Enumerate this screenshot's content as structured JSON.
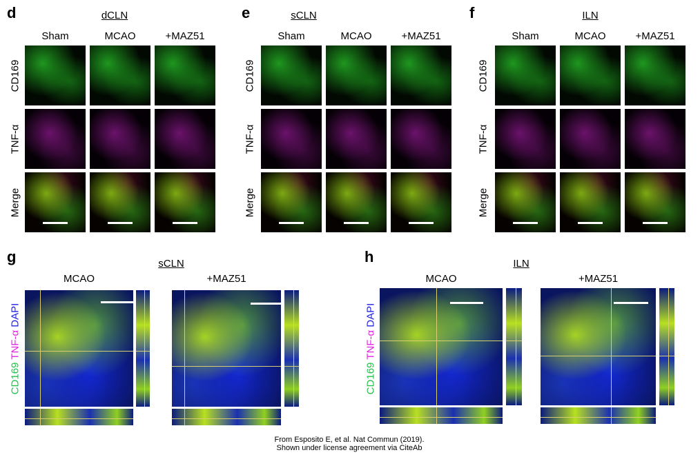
{
  "panels_top": [
    {
      "label": "d",
      "title": "dCLN",
      "columns": [
        "Sham",
        "MCAO",
        "+MAZ51"
      ],
      "rows": [
        "CD169",
        "TNF-α",
        "Merge"
      ]
    },
    {
      "label": "e",
      "title": "sCLN",
      "columns": [
        "Sham",
        "MCAO",
        "+MAZ51"
      ],
      "rows": [
        "CD169",
        "TNF-α",
        "Merge"
      ]
    },
    {
      "label": "f",
      "title": "ILN",
      "columns": [
        "Sham",
        "MCAO",
        "+MAZ51"
      ],
      "rows": [
        "CD169",
        "TNF-α",
        "Merge"
      ]
    }
  ],
  "panels_bottom": [
    {
      "label": "g",
      "title": "sCLN",
      "columns": [
        "MCAO",
        "+MAZ51"
      ],
      "stain_label": {
        "cd169": "CD169",
        "tnf": "TNF-α",
        "dapi": "DAPI"
      }
    },
    {
      "label": "h",
      "title": "ILN",
      "columns": [
        "MCAO",
        "+MAZ51"
      ],
      "stain_label": {
        "cd169": "CD169",
        "tnf": "TNF-α",
        "dapi": "DAPI"
      }
    }
  ],
  "channel_colors": {
    "CD169": "#22c04a",
    "TNF-α": "#e020e0",
    "DAPI": "#2020e0",
    "crosshair": "#d8d070",
    "scale_bar": "#ffffff"
  },
  "footer": {
    "line1": "From Esposito E, et al. Nat Commun (2019).",
    "line2": "Shown under license agreement via CiteAb"
  }
}
